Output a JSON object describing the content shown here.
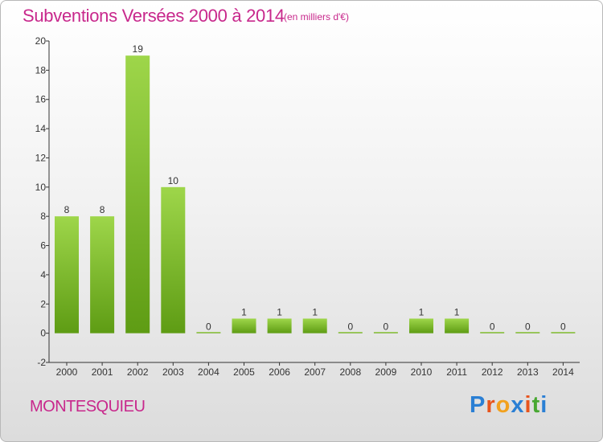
{
  "title": "Subventions Versées 2000 à 2014",
  "subtitle": "(en milliers d'€)",
  "commune": "MONTESQUIEU",
  "logo": {
    "text": "Proxiti",
    "colors": [
      "#2a7fd4",
      "#e8541c",
      "#f2a11e",
      "#2a7fd4",
      "#e8541c",
      "#48a832",
      "#2a7fd4"
    ]
  },
  "chart_data": {
    "type": "bar",
    "categories": [
      "2000",
      "2001",
      "2002",
      "2003",
      "2004",
      "2005",
      "2006",
      "2007",
      "2008",
      "2009",
      "2010",
      "2011",
      "2012",
      "2013",
      "2014"
    ],
    "values": [
      8,
      8,
      19,
      10,
      0,
      1,
      1,
      1,
      0,
      0,
      1,
      1,
      0,
      0,
      0
    ],
    "title": "Subventions Versées 2000 à 2014",
    "ylim": [
      -2,
      20
    ],
    "yticks": [
      -2,
      0,
      2,
      4,
      6,
      8,
      10,
      12,
      14,
      16,
      18,
      20
    ],
    "grid": false,
    "legend": "none",
    "colors": {
      "bar_light": "#9ed64a",
      "bar_dark": "#5e9c14",
      "axis": "#333333",
      "text": "#333333",
      "title": "#c8288c"
    }
  }
}
